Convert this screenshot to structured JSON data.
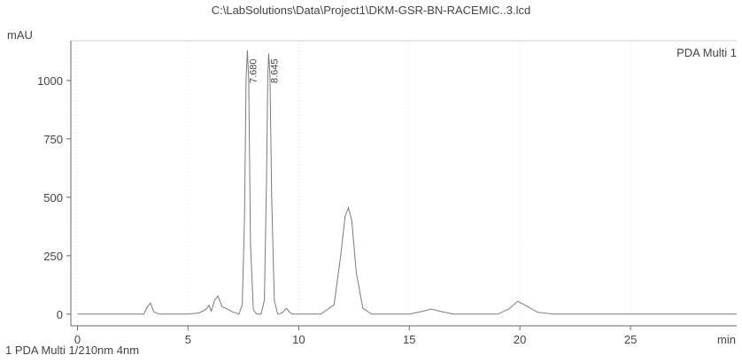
{
  "chart_data": {
    "type": "line",
    "title": "C:\\LabSolutions\\Data\\Project1\\DKM-GSR-BN-RACEMIC..3.lcd",
    "xlabel": "min",
    "ylabel": "mAU",
    "xlim": [
      -0.3,
      29.8
    ],
    "ylim": [
      -50,
      1170
    ],
    "x_ticks": [
      0,
      5,
      10,
      15,
      20,
      25
    ],
    "y_ticks": [
      0,
      250,
      500,
      750,
      1000
    ],
    "grid": "vertical dotted gridlines",
    "legend": "top-right",
    "series": [
      {
        "name": "PDA Multi 1",
        "color": "#7a7a7a",
        "x": [
          0,
          3.0,
          3.15,
          3.3,
          3.45,
          3.7,
          5.0,
          5.5,
          5.8,
          5.95,
          6.05,
          6.2,
          6.35,
          6.55,
          6.7,
          7.0,
          7.3,
          7.45,
          7.55,
          7.62,
          7.68,
          7.74,
          7.82,
          7.95,
          8.1,
          8.3,
          8.45,
          8.55,
          8.6,
          8.645,
          8.7,
          8.78,
          8.9,
          9.05,
          9.25,
          9.45,
          9.55,
          9.7,
          10.0,
          11.0,
          11.6,
          11.9,
          12.1,
          12.25,
          12.4,
          12.6,
          12.9,
          13.3,
          14.0,
          15.0,
          15.6,
          16.0,
          16.4,
          17.0,
          18.0,
          19.0,
          19.5,
          19.9,
          20.3,
          20.8,
          21.5,
          24.0,
          27.0,
          29.8
        ],
        "y": [
          0,
          0,
          30,
          48,
          10,
          0,
          0,
          5,
          20,
          38,
          12,
          60,
          78,
          30,
          25,
          10,
          0,
          40,
          400,
          1000,
          1130,
          1000,
          300,
          20,
          0,
          0,
          60,
          600,
          1020,
          1115,
          1020,
          500,
          60,
          0,
          5,
          25,
          12,
          0,
          0,
          0,
          40,
          250,
          420,
          455,
          400,
          180,
          25,
          0,
          0,
          0,
          12,
          22,
          12,
          0,
          0,
          0,
          22,
          55,
          35,
          8,
          0,
          0,
          0,
          0
        ]
      }
    ],
    "peak_labels": [
      {
        "label": "7.680",
        "x": 7.68
      },
      {
        "label": "8.645",
        "x": 8.645
      }
    ],
    "footnote": "1  PDA Multi 1/210nm 4nm"
  }
}
